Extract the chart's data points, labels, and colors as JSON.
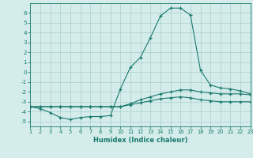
{
  "x": [
    1,
    2,
    3,
    4,
    5,
    6,
    7,
    8,
    9,
    10,
    11,
    12,
    13,
    14,
    15,
    16,
    17,
    18,
    19,
    20,
    21,
    22,
    23
  ],
  "line1": [
    -3.5,
    -3.7,
    -4.1,
    -4.6,
    -4.8,
    -4.6,
    -4.5,
    -4.5,
    -4.4,
    -1.7,
    0.5,
    1.5,
    3.5,
    5.7,
    6.5,
    6.5,
    5.8,
    0.2,
    -1.3,
    -1.6,
    -1.7,
    -1.9,
    -2.2
  ],
  "line2": [
    -3.5,
    -3.5,
    -3.5,
    -3.5,
    -3.5,
    -3.5,
    -3.5,
    -3.5,
    -3.5,
    -3.5,
    -3.2,
    -2.8,
    -2.5,
    -2.2,
    -2.0,
    -1.8,
    -1.8,
    -2.0,
    -2.1,
    -2.2,
    -2.2,
    -2.2,
    -2.3
  ],
  "line3": [
    -3.5,
    -3.5,
    -3.5,
    -3.5,
    -3.5,
    -3.5,
    -3.5,
    -3.5,
    -3.5,
    -3.5,
    -3.3,
    -3.1,
    -2.9,
    -2.7,
    -2.6,
    -2.5,
    -2.6,
    -2.8,
    -2.9,
    -3.0,
    -3.0,
    -3.0,
    -3.0
  ],
  "line_color": "#1a7a6e",
  "bg_color": "#d4ecea",
  "grid_color": "#aacfcc",
  "xlabel": "Humidex (Indice chaleur)",
  "ylim": [
    -5.5,
    7.0
  ],
  "xlim": [
    1,
    23
  ],
  "yticks": [
    -5,
    -4,
    -3,
    -2,
    -1,
    0,
    1,
    2,
    3,
    4,
    5,
    6
  ],
  "xticks": [
    1,
    2,
    3,
    4,
    5,
    6,
    7,
    8,
    9,
    10,
    11,
    12,
    13,
    14,
    15,
    16,
    17,
    18,
    19,
    20,
    21,
    22,
    23
  ]
}
